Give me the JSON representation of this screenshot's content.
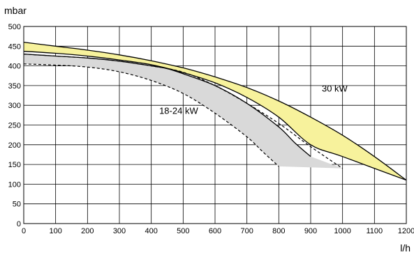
{
  "chart_data": {
    "type": "area",
    "ylabel": "mbar",
    "xlabel": "l/h",
    "xlim": [
      0,
      1200
    ],
    "ylim": [
      0,
      500
    ],
    "x_ticks": [
      "0",
      "100",
      "200",
      "300",
      "400",
      "500",
      "600",
      "700",
      "800",
      "900",
      "1000",
      "1100",
      "1200"
    ],
    "y_ticks": [
      "0",
      "50",
      "100",
      "150",
      "200",
      "250",
      "300",
      "350",
      "400",
      "450",
      "500"
    ],
    "grid": true,
    "colors": {
      "band_30kw": "#f7f29c",
      "band_18_24kw": "#d9d9d9",
      "line": "#000000"
    },
    "series": [
      {
        "name": "30 kW",
        "upper": {
          "x": [
            0,
            100,
            200,
            300,
            400,
            500,
            600,
            700,
            800,
            900,
            1000,
            1100,
            1200
          ],
          "y": [
            460,
            450,
            440,
            428,
            413,
            395,
            372,
            345,
            311,
            270,
            224,
            170,
            110
          ]
        },
        "lower": {
          "x": [
            0,
            100,
            200,
            300,
            400,
            500,
            600,
            700,
            800,
            900,
            1000,
            1200
          ],
          "y": [
            437,
            432,
            425,
            415,
            403,
            383,
            357,
            320,
            270,
            200,
            170,
            110
          ]
        },
        "lower_dashed": {
          "x": [
            0,
            100,
            200,
            300,
            400,
            500,
            600,
            700,
            800,
            900,
            1000
          ],
          "y": [
            430,
            425,
            420,
            412,
            400,
            384,
            350,
            305,
            254,
            195,
            140
          ]
        }
      },
      {
        "name": "18-24 kW",
        "upper": {
          "x": [
            0,
            100,
            200,
            300,
            400,
            450,
            500,
            600,
            700,
            800,
            850,
            900
          ],
          "y": [
            430,
            425,
            420,
            412,
            400,
            393,
            380,
            350,
            305,
            245,
            205,
            170
          ]
        },
        "lower": {
          "x": [
            0,
            100,
            200,
            300,
            400,
            500,
            600,
            700,
            750,
            800
          ],
          "y": [
            405,
            402,
            397,
            385,
            363,
            330,
            280,
            220,
            182,
            145
          ]
        },
        "base": {
          "x": [
            800,
            1000
          ],
          "y": [
            145,
            140
          ]
        }
      }
    ],
    "annotations": [
      {
        "text": "30 kW",
        "x": 935,
        "y": 335
      },
      {
        "text": "18-24 kW",
        "x": 425,
        "y": 278
      }
    ]
  }
}
